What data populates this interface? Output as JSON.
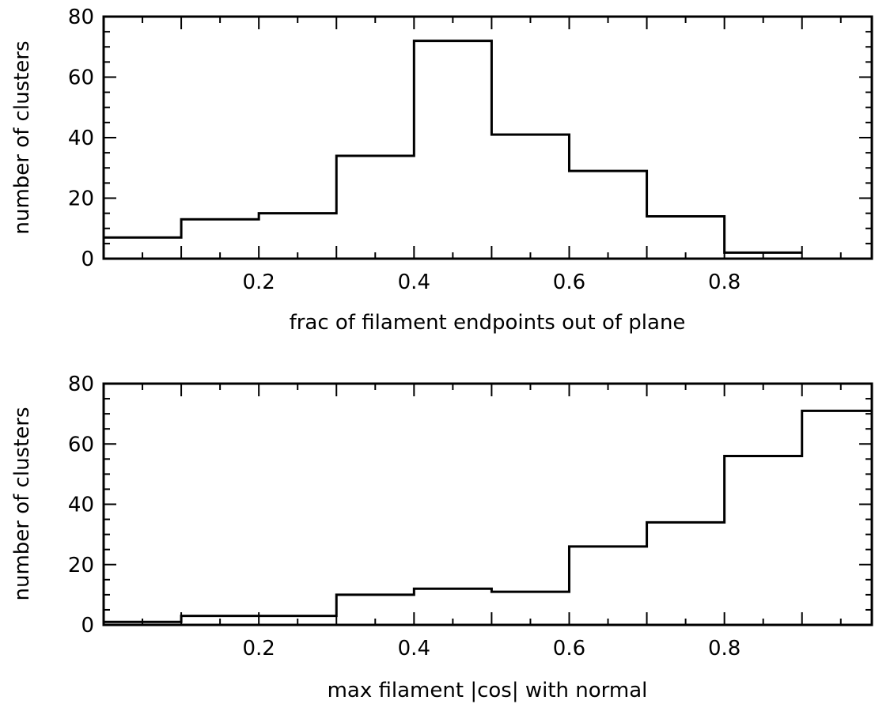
{
  "chart_data": [
    {
      "type": "bar",
      "xlabel": "frac of filament endpoints out of plane",
      "ylabel": "number of clusters",
      "xlim": [
        0,
        0.99
      ],
      "ylim": [
        0,
        80
      ],
      "x_ticks": [
        "0.2",
        "0.4",
        "0.6",
        "0.8"
      ],
      "y_ticks": [
        "0",
        "20",
        "40",
        "60",
        "80"
      ],
      "bin_edges": [
        0,
        0.1,
        0.2,
        0.3,
        0.4,
        0.5,
        0.6,
        0.7,
        0.8,
        0.9
      ],
      "values": [
        7,
        13,
        15,
        34,
        72,
        41,
        29,
        14,
        2
      ]
    },
    {
      "type": "bar",
      "xlabel": "max filament |cos| with normal",
      "ylabel": "number of clusters",
      "xlim": [
        0,
        0.99
      ],
      "ylim": [
        0,
        80
      ],
      "x_ticks": [
        "0.2",
        "0.4",
        "0.6",
        "0.8"
      ],
      "y_ticks": [
        "0",
        "20",
        "40",
        "60",
        "80"
      ],
      "bin_edges": [
        0,
        0.1,
        0.2,
        0.3,
        0.4,
        0.5,
        0.6,
        0.7,
        0.8,
        0.9,
        0.99
      ],
      "values": [
        1,
        3,
        3,
        10,
        12,
        11,
        26,
        34,
        56,
        71
      ]
    }
  ]
}
